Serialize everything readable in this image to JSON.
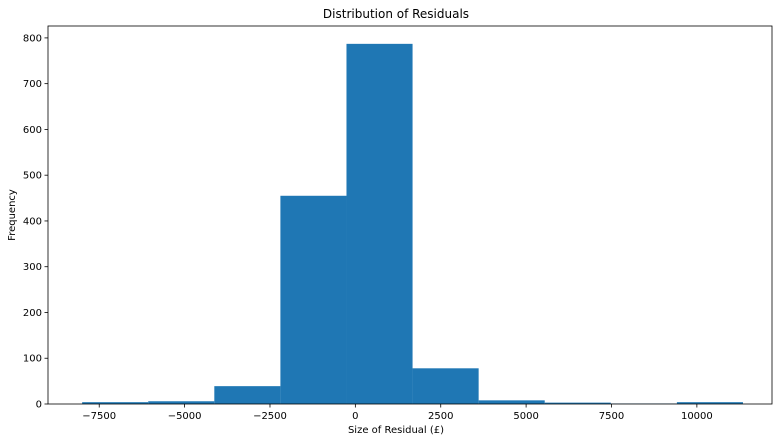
{
  "chart_data": {
    "type": "bar",
    "title": "Distribution of Residuals",
    "xlabel": "Size of Residual (£)",
    "ylabel": "Frequency",
    "xlim": [
      -9000,
      12200
    ],
    "ylim": [
      0,
      826
    ],
    "grid": false,
    "bar_color": "#1f77b4",
    "bin_edges": [
      -8000,
      -6065,
      -4130,
      -2195,
      -260,
      1675,
      3610,
      5545,
      7480,
      9415,
      11350
    ],
    "values": [
      4,
      6,
      39,
      455,
      787,
      78,
      8,
      3,
      1,
      4
    ],
    "x_ticks": [
      -7500,
      -5000,
      -2500,
      0,
      2500,
      5000,
      7500,
      10000
    ],
    "x_tick_labels": [
      "−7500",
      "−5000",
      "−2500",
      "0",
      "2500",
      "5000",
      "7500",
      "10000"
    ],
    "y_ticks": [
      0,
      100,
      200,
      300,
      400,
      500,
      600,
      700,
      800
    ],
    "y_tick_labels": [
      "0",
      "100",
      "200",
      "300",
      "400",
      "500",
      "600",
      "700",
      "800"
    ]
  }
}
